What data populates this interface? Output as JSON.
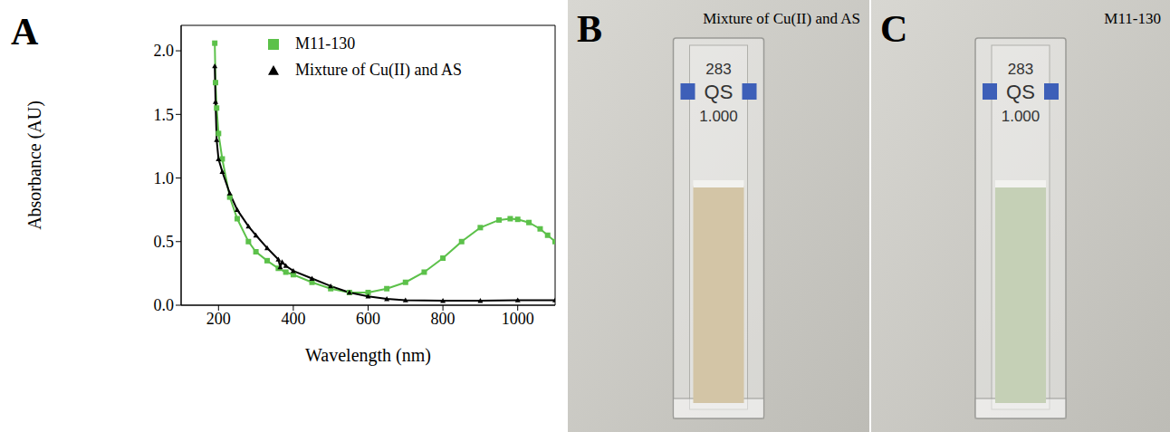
{
  "chart_data": {
    "type": "line",
    "panel_label": "A",
    "x_label": "Wavelength (nm)",
    "y_label": "Absorbance (AU)",
    "xlim": [
      100,
      1100
    ],
    "xticks": [
      200,
      400,
      600,
      800,
      1000
    ],
    "ylim": [
      0,
      2.2
    ],
    "yticks": [
      {
        "value": 0,
        "label": "0.0"
      },
      {
        "value": 0.5,
        "label": "0.5"
      },
      {
        "value": 1,
        "label": "1.0"
      },
      {
        "value": 1.5,
        "label": "1.5"
      },
      {
        "value": 2,
        "label": "2.0"
      }
    ],
    "legend": "upper right",
    "series": [
      {
        "name": "M11-130",
        "color": "#5cc14a",
        "marker": "square",
        "x": [
          190,
          192,
          195,
          200,
          210,
          230,
          250,
          280,
          300,
          330,
          360,
          380,
          400,
          450,
          500,
          550,
          600,
          650,
          700,
          750,
          800,
          850,
          900,
          950,
          980,
          1000,
          1030,
          1060,
          1080,
          1100
        ],
        "values": [
          2.06,
          1.75,
          1.55,
          1.35,
          1.15,
          0.85,
          0.68,
          0.5,
          0.42,
          0.35,
          0.29,
          0.26,
          0.24,
          0.18,
          0.13,
          0.1,
          0.1,
          0.13,
          0.18,
          0.26,
          0.37,
          0.5,
          0.61,
          0.67,
          0.68,
          0.675,
          0.65,
          0.6,
          0.55,
          0.5
        ]
      },
      {
        "name": "Mixture of Cu(II) and AS",
        "color": "#000000",
        "marker": "triangle",
        "x": [
          190,
          192,
          195,
          200,
          210,
          230,
          250,
          280,
          300,
          330,
          360,
          365,
          370,
          380,
          400,
          450,
          500,
          550,
          600,
          650,
          700,
          800,
          900,
          1000,
          1100
        ],
        "values": [
          1.88,
          1.6,
          1.3,
          1.15,
          1.05,
          0.88,
          0.75,
          0.62,
          0.55,
          0.45,
          0.36,
          0.3,
          0.34,
          0.31,
          0.27,
          0.21,
          0.15,
          0.1,
          0.07,
          0.05,
          0.04,
          0.035,
          0.035,
          0.04,
          0.04
        ]
      }
    ]
  },
  "photos": [
    {
      "panel_label": "B",
      "title": "Mixture of Cu(II) and AS",
      "cuvette_text": [
        "283",
        "QS",
        "1.000"
      ],
      "solution_color": "#d3c5a6"
    },
    {
      "panel_label": "C",
      "title": "M11-130",
      "cuvette_text": [
        "283",
        "QS",
        "1.000"
      ],
      "solution_color": "#c5d0b6"
    }
  ]
}
